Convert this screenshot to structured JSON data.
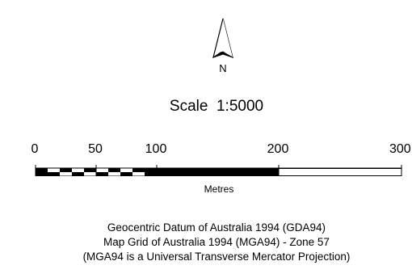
{
  "north_arrow": {
    "icon": "north-arrow-icon",
    "label": "N"
  },
  "scale": {
    "title": "Scale  1:5000",
    "ticks": [
      "0",
      "50",
      "100",
      "200",
      "300"
    ],
    "units": "Metres"
  },
  "notes": {
    "line1": "Geocentric Datum of Australia 1994 (GDA94)",
    "line2": "Map Grid of Australia 1994 (MGA94) - Zone 57",
    "line3": "(MGA94 is a Universal Transverse Mercator Projection)"
  }
}
